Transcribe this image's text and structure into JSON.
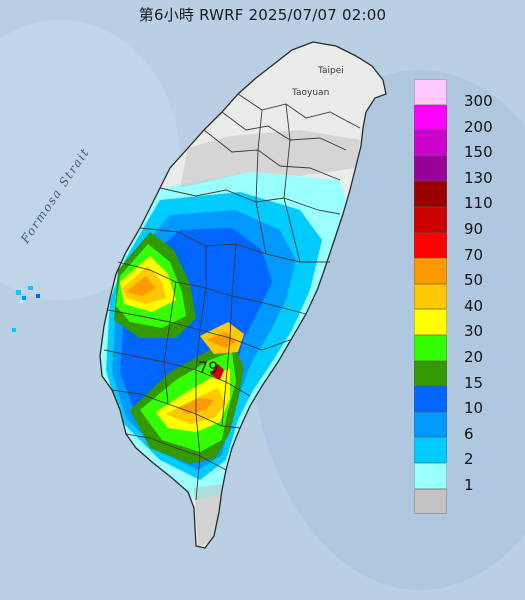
{
  "title": "第6小時  RWRF 2025/07/07 02:00",
  "map": {
    "strait_label": "Formosa Strait",
    "city_labels": [
      "Taipei",
      "Taoyuan"
    ],
    "peak_value": "79",
    "colors": {
      "sea": "#b9cfe4",
      "land": "#e9ece8",
      "border": "#3a3a3a"
    }
  },
  "legend": {
    "items": [
      {
        "label": "300",
        "color": "#ffc8ff"
      },
      {
        "label": "200",
        "color": "#ff00ff"
      },
      {
        "label": "150",
        "color": "#cc00cc"
      },
      {
        "label": "130",
        "color": "#990099"
      },
      {
        "label": "110",
        "color": "#990000"
      },
      {
        "label": "90",
        "color": "#cc0000"
      },
      {
        "label": "70",
        "color": "#ff0000"
      },
      {
        "label": "50",
        "color": "#ff9900"
      },
      {
        "label": "40",
        "color": "#ffc800"
      },
      {
        "label": "30",
        "color": "#ffff00"
      },
      {
        "label": "20",
        "color": "#33ff00"
      },
      {
        "label": "15",
        "color": "#339900"
      },
      {
        "label": "10",
        "color": "#0066ff"
      },
      {
        "label": "6",
        "color": "#0099ff"
      },
      {
        "label": "2",
        "color": "#00ccff"
      },
      {
        "label": "1",
        "color": "#99ffff"
      },
      {
        "label": "",
        "color": "#c3c3c3"
      }
    ]
  }
}
